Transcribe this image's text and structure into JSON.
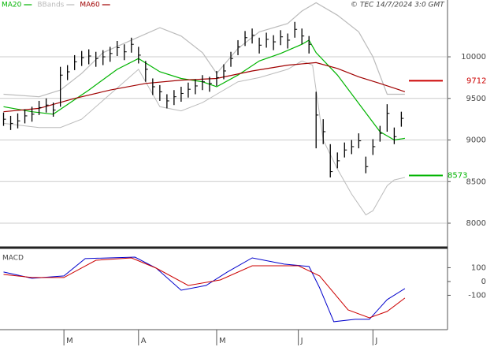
{
  "chart_data": [
    {
      "type": "ohlc",
      "annotation": "© TEC 14/7/2024 3:0 GMT",
      "xlim": [
        -1,
        125
      ],
      "ylim": [
        7725,
        10683
      ],
      "yticks": [
        10000,
        9500,
        9000,
        8500,
        8000
      ],
      "grid": true,
      "bar_color": "#000000",
      "x": [
        0,
        2,
        4,
        6,
        8,
        10,
        12,
        14,
        16,
        18,
        20,
        22,
        24,
        26,
        28,
        30,
        32,
        34,
        36,
        38,
        40,
        42,
        44,
        46,
        48,
        50,
        52,
        54,
        56,
        58,
        60,
        62,
        64,
        66,
        68,
        70,
        72,
        74,
        76,
        78,
        80,
        82,
        84,
        86,
        88,
        90,
        92,
        94,
        96,
        98,
        100,
        102,
        104,
        106,
        108,
        110,
        112
      ],
      "high": [
        9330,
        9290,
        9320,
        9370,
        9400,
        9470,
        9500,
        9450,
        9880,
        9900,
        10020,
        10070,
        10090,
        10060,
        10080,
        10120,
        10190,
        10150,
        10230,
        10120,
        9950,
        9740,
        9660,
        9550,
        9600,
        9640,
        9690,
        9730,
        9780,
        9760,
        9830,
        9910,
        10060,
        10200,
        10310,
        10340,
        10230,
        10290,
        10260,
        10320,
        10280,
        10420,
        10340,
        10250,
        9580,
        9250,
        8950,
        8850,
        8970,
        9000,
        9080,
        8800,
        9010,
        9170,
        9430,
        9150,
        9340
      ],
      "low": [
        9170,
        9120,
        9140,
        9200,
        9220,
        9300,
        9330,
        9280,
        9400,
        9720,
        9840,
        9890,
        9910,
        9880,
        9900,
        9940,
        10010,
        9960,
        10050,
        9920,
        9700,
        9540,
        9470,
        9380,
        9420,
        9460,
        9510,
        9550,
        9600,
        9580,
        9650,
        9730,
        9880,
        10020,
        10130,
        10160,
        10040,
        10110,
        10080,
        10140,
        10100,
        10230,
        10150,
        10040,
        8900,
        8950,
        8550,
        8660,
        8790,
        8830,
        8900,
        8600,
        8820,
        8980,
        9100,
        8950,
        9160
      ],
      "close": [
        9250,
        9200,
        9230,
        9290,
        9310,
        9390,
        9420,
        9360,
        9780,
        9820,
        9940,
        9990,
        10010,
        9980,
        10000,
        10040,
        10110,
        10060,
        10150,
        10020,
        9850,
        9640,
        9580,
        9470,
        9520,
        9560,
        9610,
        9650,
        9700,
        9680,
        9750,
        9830,
        9980,
        10120,
        10230,
        10260,
        10140,
        10210,
        10180,
        10240,
        10200,
        10330,
        10250,
        10150,
        9300,
        9100,
        8620,
        8750,
        8880,
        8920,
        8990,
        8680,
        8920,
        9080,
        9320,
        9040,
        9260
      ],
      "series": [
        {
          "name": "MA20",
          "color": "#00b400",
          "x": [
            0,
            8,
            14,
            24,
            32,
            38,
            44,
            50,
            56,
            60,
            66,
            72,
            78,
            84,
            86,
            88,
            94,
            100,
            106,
            110,
            113
          ],
          "values": [
            9400,
            9340,
            9310,
            9600,
            9850,
            9980,
            9820,
            9740,
            9700,
            9640,
            9780,
            9950,
            10040,
            10150,
            10200,
            10050,
            9780,
            9440,
            9100,
            9000,
            9020
          ]
        },
        {
          "name": "BBands",
          "color": "#bbbbbb",
          "x": [
            0,
            10,
            16,
            22,
            28,
            36,
            44,
            50,
            56,
            60,
            66,
            72,
            80,
            84,
            88,
            94,
            100,
            104,
            108,
            113
          ],
          "values": [
            9550,
            9520,
            9600,
            9800,
            10050,
            10200,
            10350,
            10250,
            10050,
            9800,
            10100,
            10300,
            10400,
            10550,
            10650,
            10500,
            10300,
            10000,
            9550,
            9550
          ],
          "x_lower": [
            0,
            10,
            16,
            22,
            30,
            38,
            44,
            50,
            56,
            60,
            66,
            72,
            80,
            84,
            87,
            90,
            94,
            98,
            102,
            104,
            108,
            110,
            113
          ],
          "lower": [
            9200,
            9150,
            9150,
            9250,
            9550,
            9850,
            9400,
            9350,
            9450,
            9550,
            9700,
            9750,
            9850,
            9950,
            9900,
            9000,
            8650,
            8350,
            8100,
            8150,
            8450,
            8520,
            8550
          ]
        },
        {
          "name": "MA60",
          "color": "#a00000",
          "x": [
            0,
            10,
            20,
            30,
            40,
            50,
            60,
            70,
            80,
            88,
            94,
            100,
            106,
            113
          ],
          "values": [
            9340,
            9380,
            9500,
            9600,
            9680,
            9720,
            9740,
            9830,
            9900,
            9930,
            9860,
            9760,
            9680,
            9580
          ]
        }
      ],
      "levels": [
        {
          "value": 9712,
          "color": "#cc0000"
        },
        {
          "value": 8573,
          "color": "#00b400"
        }
      ]
    },
    {
      "type": "line",
      "title": "MACD",
      "xlim": [
        -1,
        125
      ],
      "ylim": [
        -349,
        234
      ],
      "yticks": [
        100,
        0,
        -100
      ],
      "xticks": [
        {
          "value": 17,
          "label": "M"
        },
        {
          "value": 38,
          "label": "A"
        },
        {
          "value": 60,
          "label": "M"
        },
        {
          "value": 83,
          "label": "J"
        },
        {
          "value": 104,
          "label": "J"
        }
      ],
      "series": [
        {
          "color": "#0000cc",
          "x": [
            0,
            8,
            17,
            23,
            37,
            43,
            50,
            57,
            63,
            70,
            79,
            86,
            89,
            93,
            99,
            103,
            108,
            113
          ],
          "values": [
            69,
            23,
            40,
            166,
            177,
            97,
            -63,
            -29,
            69,
            171,
            126,
            109,
            -46,
            -291,
            -274,
            -274,
            -131,
            -51
          ]
        },
        {
          "color": "#cc0000",
          "x": [
            0,
            8,
            17,
            26,
            36,
            43,
            52,
            61,
            70,
            83,
            89,
            97,
            103,
            108,
            113
          ],
          "values": [
            51,
            29,
            29,
            154,
            171,
            97,
            -29,
            11,
            114,
            114,
            40,
            -206,
            -263,
            -217,
            -120
          ]
        }
      ]
    }
  ]
}
